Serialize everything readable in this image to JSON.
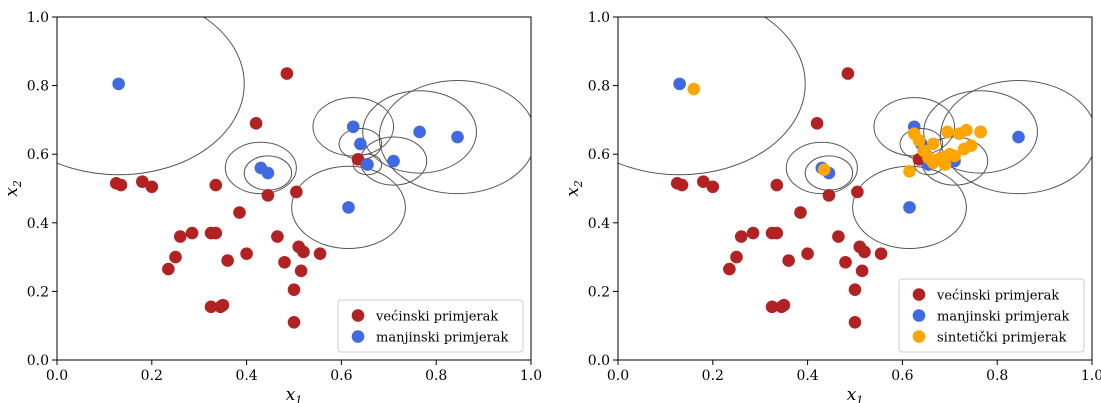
{
  "chart_data": [
    {
      "type": "scatter",
      "xlabel": "x",
      "xlabel_sub": "1",
      "ylabel": "x",
      "ylabel_sub": "2",
      "xlim": [
        0,
        1
      ],
      "ylim": [
        0,
        1
      ],
      "xticks": [
        "0.0",
        "0.2",
        "0.4",
        "0.6",
        "0.8",
        "1.0"
      ],
      "yticks": [
        "0.0",
        "0.2",
        "0.4",
        "0.6",
        "0.8",
        "1.0"
      ],
      "grid": false,
      "legend_position": "lower-right",
      "series": [
        {
          "name": "većinski primjerak",
          "color": "#b22222",
          "points": [
            [
              0.125,
              0.515
            ],
            [
              0.135,
              0.51
            ],
            [
              0.18,
              0.52
            ],
            [
              0.2,
              0.505
            ],
            [
              0.235,
              0.265
            ],
            [
              0.25,
              0.3
            ],
            [
              0.26,
              0.36
            ],
            [
              0.285,
              0.37
            ],
            [
              0.325,
              0.155
            ],
            [
              0.325,
              0.37
            ],
            [
              0.335,
              0.37
            ],
            [
              0.335,
              0.51
            ],
            [
              0.345,
              0.155
            ],
            [
              0.35,
              0.16
            ],
            [
              0.36,
              0.29
            ],
            [
              0.385,
              0.43
            ],
            [
              0.4,
              0.31
            ],
            [
              0.42,
              0.69
            ],
            [
              0.445,
              0.48
            ],
            [
              0.465,
              0.36
            ],
            [
              0.48,
              0.285
            ],
            [
              0.485,
              0.835
            ],
            [
              0.5,
              0.205
            ],
            [
              0.5,
              0.11
            ],
            [
              0.505,
              0.49
            ],
            [
              0.51,
              0.33
            ],
            [
              0.515,
              0.26
            ],
            [
              0.52,
              0.315
            ],
            [
              0.555,
              0.31
            ],
            [
              0.635,
              0.585
            ]
          ]
        },
        {
          "name": "manjinski primjerak",
          "color": "#4169e1",
          "points": [
            [
              0.13,
              0.805
            ],
            [
              0.43,
              0.56
            ],
            [
              0.445,
              0.545
            ],
            [
              0.615,
              0.445
            ],
            [
              0.625,
              0.68
            ],
            [
              0.64,
              0.63
            ],
            [
              0.655,
              0.57
            ],
            [
              0.71,
              0.58
            ],
            [
              0.765,
              0.665
            ],
            [
              0.845,
              0.65
            ]
          ]
        }
      ],
      "circles": [
        {
          "cx": 0.13,
          "cy": 0.805,
          "r": 0.265
        },
        {
          "cx": 0.43,
          "cy": 0.56,
          "r": 0.075
        },
        {
          "cx": 0.445,
          "cy": 0.545,
          "r": 0.05
        },
        {
          "cx": 0.615,
          "cy": 0.445,
          "r": 0.12
        },
        {
          "cx": 0.625,
          "cy": 0.68,
          "r": 0.085
        },
        {
          "cx": 0.64,
          "cy": 0.63,
          "r": 0.045
        },
        {
          "cx": 0.655,
          "cy": 0.57,
          "r": 0.03
        },
        {
          "cx": 0.71,
          "cy": 0.58,
          "r": 0.07
        },
        {
          "cx": 0.765,
          "cy": 0.665,
          "r": 0.12
        },
        {
          "cx": 0.845,
          "cy": 0.65,
          "r": 0.165
        }
      ]
    },
    {
      "type": "scatter",
      "xlabel": "x",
      "xlabel_sub": "1",
      "ylabel": "x",
      "ylabel_sub": "2",
      "xlim": [
        0,
        1
      ],
      "ylim": [
        0,
        1
      ],
      "xticks": [
        "0.0",
        "0.2",
        "0.4",
        "0.6",
        "0.8",
        "1.0"
      ],
      "yticks": [
        "0.0",
        "0.2",
        "0.4",
        "0.6",
        "0.8",
        "1.0"
      ],
      "grid": false,
      "legend_position": "lower-right",
      "series": [
        {
          "name": "većinski primjerak",
          "color": "#b22222",
          "points": [
            [
              0.125,
              0.515
            ],
            [
              0.135,
              0.51
            ],
            [
              0.18,
              0.52
            ],
            [
              0.2,
              0.505
            ],
            [
              0.235,
              0.265
            ],
            [
              0.25,
              0.3
            ],
            [
              0.26,
              0.36
            ],
            [
              0.285,
              0.37
            ],
            [
              0.325,
              0.155
            ],
            [
              0.325,
              0.37
            ],
            [
              0.335,
              0.37
            ],
            [
              0.335,
              0.51
            ],
            [
              0.345,
              0.155
            ],
            [
              0.35,
              0.16
            ],
            [
              0.36,
              0.29
            ],
            [
              0.385,
              0.43
            ],
            [
              0.4,
              0.31
            ],
            [
              0.42,
              0.69
            ],
            [
              0.445,
              0.48
            ],
            [
              0.465,
              0.36
            ],
            [
              0.48,
              0.285
            ],
            [
              0.485,
              0.835
            ],
            [
              0.5,
              0.205
            ],
            [
              0.5,
              0.11
            ],
            [
              0.505,
              0.49
            ],
            [
              0.51,
              0.33
            ],
            [
              0.515,
              0.26
            ],
            [
              0.52,
              0.315
            ],
            [
              0.555,
              0.31
            ],
            [
              0.635,
              0.585
            ]
          ]
        },
        {
          "name": "manjinski primjerak",
          "color": "#4169e1",
          "points": [
            [
              0.13,
              0.805
            ],
            [
              0.43,
              0.56
            ],
            [
              0.445,
              0.545
            ],
            [
              0.615,
              0.445
            ],
            [
              0.625,
              0.68
            ],
            [
              0.64,
              0.63
            ],
            [
              0.655,
              0.57
            ],
            [
              0.71,
              0.58
            ],
            [
              0.765,
              0.665
            ],
            [
              0.845,
              0.65
            ]
          ]
        },
        {
          "name": "sintetički primjerak",
          "color": "#ffa500",
          "points": [
            [
              0.16,
              0.79
            ],
            [
              0.435,
              0.555
            ],
            [
              0.615,
              0.55
            ],
            [
              0.625,
              0.66
            ],
            [
              0.635,
              0.64
            ],
            [
              0.645,
              0.61
            ],
            [
              0.655,
              0.59
            ],
            [
              0.665,
              0.575
            ],
            [
              0.665,
              0.63
            ],
            [
              0.675,
              0.585
            ],
            [
              0.685,
              0.59
            ],
            [
              0.69,
              0.57
            ],
            [
              0.695,
              0.665
            ],
            [
              0.7,
              0.6
            ],
            [
              0.71,
              0.595
            ],
            [
              0.72,
              0.66
            ],
            [
              0.73,
              0.615
            ],
            [
              0.735,
              0.67
            ],
            [
              0.745,
              0.625
            ],
            [
              0.765,
              0.665
            ]
          ]
        }
      ],
      "circles": [
        {
          "cx": 0.13,
          "cy": 0.805,
          "r": 0.265
        },
        {
          "cx": 0.43,
          "cy": 0.56,
          "r": 0.075
        },
        {
          "cx": 0.445,
          "cy": 0.545,
          "r": 0.05
        },
        {
          "cx": 0.615,
          "cy": 0.445,
          "r": 0.12
        },
        {
          "cx": 0.625,
          "cy": 0.68,
          "r": 0.085
        },
        {
          "cx": 0.64,
          "cy": 0.63,
          "r": 0.045
        },
        {
          "cx": 0.655,
          "cy": 0.57,
          "r": 0.03
        },
        {
          "cx": 0.71,
          "cy": 0.58,
          "r": 0.07
        },
        {
          "cx": 0.765,
          "cy": 0.665,
          "r": 0.12
        },
        {
          "cx": 0.845,
          "cy": 0.65,
          "r": 0.165
        }
      ]
    }
  ]
}
